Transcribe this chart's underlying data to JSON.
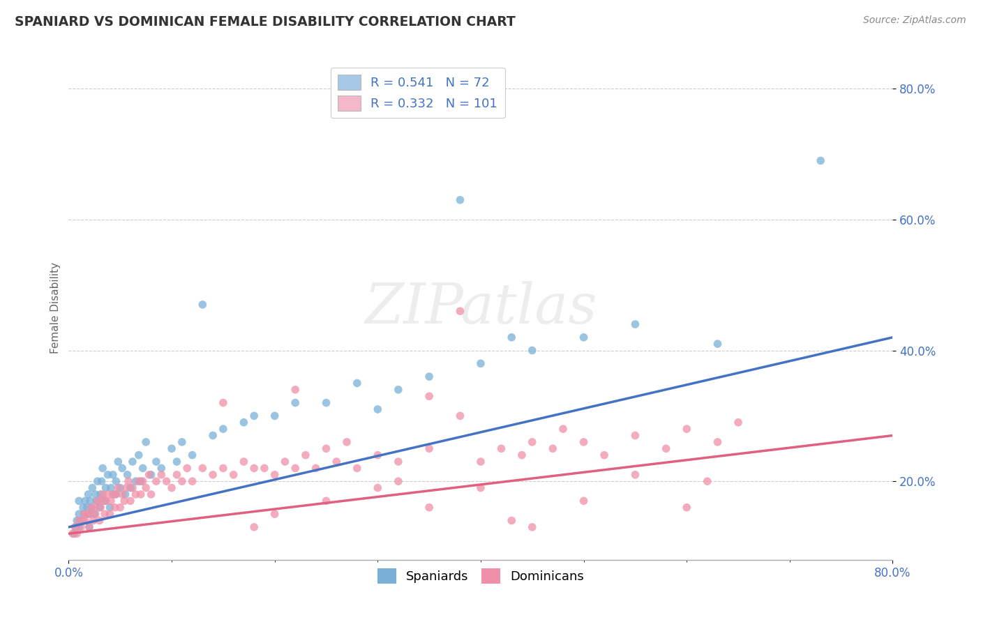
{
  "title": "SPANIARD VS DOMINICAN FEMALE DISABILITY CORRELATION CHART",
  "source_text": "Source: ZipAtlas.com",
  "ylabel": "Female Disability",
  "xlim": [
    0.0,
    0.8
  ],
  "ylim": [
    0.08,
    0.85
  ],
  "ytick_labels": [
    "20.0%",
    "40.0%",
    "60.0%",
    "80.0%"
  ],
  "ytick_positions": [
    0.2,
    0.4,
    0.6,
    0.8
  ],
  "legend_label1": "R = 0.541   N = 72",
  "legend_label2": "R = 0.332   N = 101",
  "legend_color1": "#a8c8e8",
  "legend_color2": "#f4b8c8",
  "scatter_color_spaniards": "#7ab0d8",
  "scatter_color_dominicans": "#f090a8",
  "line_color_spaniards": "#4472C4",
  "line_color_dominicans": "#E06080",
  "watermark_text": "ZIPatlas",
  "background_color": "#ffffff",
  "grid_color": "#cccccc",
  "spaniards_x": [
    0.005,
    0.007,
    0.008,
    0.01,
    0.01,
    0.01,
    0.012,
    0.014,
    0.015,
    0.016,
    0.018,
    0.019,
    0.02,
    0.02,
    0.021,
    0.022,
    0.023,
    0.025,
    0.026,
    0.027,
    0.028,
    0.03,
    0.031,
    0.032,
    0.033,
    0.035,
    0.036,
    0.038,
    0.04,
    0.041,
    0.043,
    0.045,
    0.046,
    0.048,
    0.05,
    0.052,
    0.055,
    0.057,
    0.06,
    0.062,
    0.065,
    0.068,
    0.07,
    0.072,
    0.075,
    0.08,
    0.085,
    0.09,
    0.1,
    0.105,
    0.11,
    0.12,
    0.13,
    0.14,
    0.15,
    0.17,
    0.18,
    0.2,
    0.22,
    0.25,
    0.28,
    0.3,
    0.32,
    0.35,
    0.38,
    0.4,
    0.43,
    0.45,
    0.5,
    0.55,
    0.63,
    0.73
  ],
  "spaniards_y": [
    0.12,
    0.13,
    0.14,
    0.13,
    0.15,
    0.17,
    0.14,
    0.16,
    0.15,
    0.17,
    0.16,
    0.18,
    0.13,
    0.15,
    0.17,
    0.16,
    0.19,
    0.15,
    0.18,
    0.17,
    0.2,
    0.16,
    0.18,
    0.2,
    0.22,
    0.17,
    0.19,
    0.21,
    0.16,
    0.19,
    0.21,
    0.18,
    0.2,
    0.23,
    0.19,
    0.22,
    0.18,
    0.21,
    0.19,
    0.23,
    0.2,
    0.24,
    0.2,
    0.22,
    0.26,
    0.21,
    0.23,
    0.22,
    0.25,
    0.23,
    0.26,
    0.24,
    0.47,
    0.27,
    0.28,
    0.29,
    0.3,
    0.3,
    0.32,
    0.32,
    0.35,
    0.31,
    0.34,
    0.36,
    0.63,
    0.38,
    0.42,
    0.4,
    0.42,
    0.44,
    0.41,
    0.69
  ],
  "dominicans_x": [
    0.004,
    0.006,
    0.008,
    0.01,
    0.012,
    0.014,
    0.015,
    0.016,
    0.018,
    0.02,
    0.021,
    0.022,
    0.024,
    0.025,
    0.026,
    0.028,
    0.03,
    0.031,
    0.032,
    0.033,
    0.035,
    0.036,
    0.038,
    0.04,
    0.041,
    0.043,
    0.045,
    0.046,
    0.048,
    0.05,
    0.052,
    0.054,
    0.056,
    0.058,
    0.06,
    0.062,
    0.065,
    0.068,
    0.07,
    0.072,
    0.075,
    0.078,
    0.08,
    0.085,
    0.09,
    0.095,
    0.1,
    0.105,
    0.11,
    0.115,
    0.12,
    0.13,
    0.14,
    0.15,
    0.16,
    0.17,
    0.18,
    0.19,
    0.2,
    0.21,
    0.22,
    0.23,
    0.24,
    0.26,
    0.28,
    0.3,
    0.32,
    0.35,
    0.38,
    0.4,
    0.42,
    0.44,
    0.45,
    0.47,
    0.5,
    0.52,
    0.55,
    0.58,
    0.6,
    0.63,
    0.65,
    0.43,
    0.3,
    0.35,
    0.4,
    0.22,
    0.25,
    0.55,
    0.15,
    0.2,
    0.18,
    0.25,
    0.32,
    0.27,
    0.38,
    0.45,
    0.5,
    0.62,
    0.48,
    0.6,
    0.35
  ],
  "dominicans_y": [
    0.12,
    0.13,
    0.12,
    0.14,
    0.13,
    0.14,
    0.15,
    0.14,
    0.15,
    0.13,
    0.15,
    0.16,
    0.14,
    0.16,
    0.15,
    0.17,
    0.14,
    0.16,
    0.17,
    0.18,
    0.15,
    0.17,
    0.18,
    0.15,
    0.17,
    0.18,
    0.16,
    0.18,
    0.19,
    0.16,
    0.18,
    0.17,
    0.19,
    0.2,
    0.17,
    0.19,
    0.18,
    0.2,
    0.18,
    0.2,
    0.19,
    0.21,
    0.18,
    0.2,
    0.21,
    0.2,
    0.19,
    0.21,
    0.2,
    0.22,
    0.2,
    0.22,
    0.21,
    0.22,
    0.21,
    0.23,
    0.22,
    0.22,
    0.21,
    0.23,
    0.22,
    0.24,
    0.22,
    0.23,
    0.22,
    0.24,
    0.23,
    0.25,
    0.46,
    0.23,
    0.25,
    0.24,
    0.26,
    0.25,
    0.26,
    0.24,
    0.27,
    0.25,
    0.28,
    0.26,
    0.29,
    0.14,
    0.19,
    0.16,
    0.19,
    0.34,
    0.17,
    0.21,
    0.32,
    0.15,
    0.13,
    0.25,
    0.2,
    0.26,
    0.3,
    0.13,
    0.17,
    0.2,
    0.28,
    0.16,
    0.33
  ]
}
